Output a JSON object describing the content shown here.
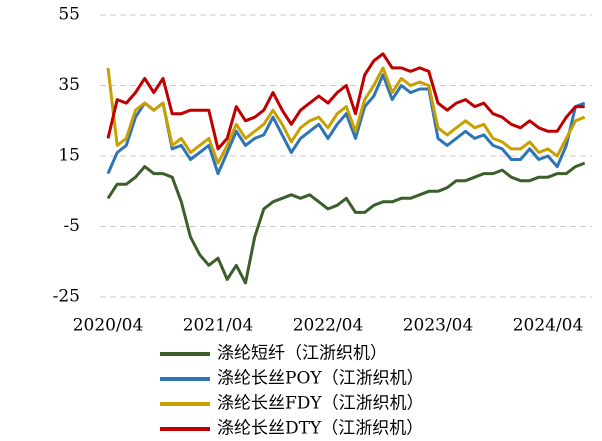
{
  "chart_data": {
    "type": "line",
    "categories": [
      "2020/04",
      null,
      null,
      null,
      null,
      null,
      null,
      null,
      null,
      null,
      null,
      null,
      "2021/04",
      null,
      null,
      null,
      null,
      null,
      null,
      null,
      null,
      null,
      null,
      null,
      "2022/04",
      null,
      null,
      null,
      null,
      null,
      null,
      null,
      null,
      null,
      null,
      null,
      "2023/04",
      null,
      null,
      null,
      null,
      null,
      null,
      null,
      null,
      null,
      null,
      null,
      "2024/04",
      null,
      null,
      null,
      null
    ],
    "series": [
      {
        "name": "涤纶短纤（江浙织机）",
        "color": "#3b5e2b",
        "values": [
          3,
          7,
          7,
          9,
          12,
          10,
          10,
          9,
          2,
          -8,
          -13,
          -16,
          -14,
          -20,
          -16,
          -21,
          -8,
          0,
          2,
          3,
          4,
          3,
          4,
          2,
          0,
          1,
          3,
          -1,
          -1,
          1,
          2,
          2,
          3,
          3,
          4,
          5,
          5,
          6,
          8,
          8,
          9,
          10,
          10,
          11,
          9,
          8,
          8,
          9,
          9,
          10,
          10,
          12,
          13
        ]
      },
      {
        "name": "涤纶长丝POY（江浙织机）",
        "color": "#2e75b6",
        "values": [
          10,
          16,
          18,
          26,
          30,
          28,
          30,
          17,
          18,
          14,
          16,
          18,
          10,
          16,
          22,
          18,
          20,
          21,
          26,
          21,
          16,
          20,
          22,
          24,
          20,
          24,
          27,
          20,
          29,
          32,
          38,
          31,
          35,
          33,
          34,
          34,
          20,
          18,
          20,
          22,
          20,
          21,
          18,
          17,
          14,
          14,
          17,
          14,
          15,
          12,
          18,
          29,
          30
        ]
      },
      {
        "name": "涤纶长丝FDY（江浙织机）",
        "color": "#c9a000",
        "values": [
          40,
          18,
          20,
          28,
          30,
          28,
          30,
          18,
          20,
          16,
          18,
          20,
          13,
          18,
          24,
          20,
          22,
          24,
          28,
          24,
          19,
          23,
          25,
          26,
          23,
          27,
          29,
          22,
          31,
          35,
          40,
          33,
          37,
          35,
          36,
          35,
          23,
          21,
          23,
          25,
          23,
          24,
          20,
          19,
          17,
          17,
          19,
          16,
          17,
          15,
          20,
          25,
          26
        ]
      },
      {
        "name": "涤纶长丝DTY（江浙织机）",
        "color": "#c00000",
        "values": [
          20,
          31,
          30,
          33,
          37,
          33,
          37,
          27,
          27,
          28,
          28,
          28,
          17,
          20,
          29,
          25,
          26,
          28,
          33,
          28,
          24,
          28,
          30,
          32,
          30,
          33,
          35,
          27,
          38,
          42,
          44,
          40,
          40,
          39,
          40,
          39,
          30,
          28,
          30,
          31,
          29,
          30,
          27,
          26,
          24,
          23,
          25,
          23,
          22,
          22,
          26,
          29,
          29
        ]
      }
    ],
    "ylim": [
      -25,
      55
    ],
    "yticks": [
      -25,
      -5,
      15,
      35,
      55
    ],
    "grid": true
  }
}
